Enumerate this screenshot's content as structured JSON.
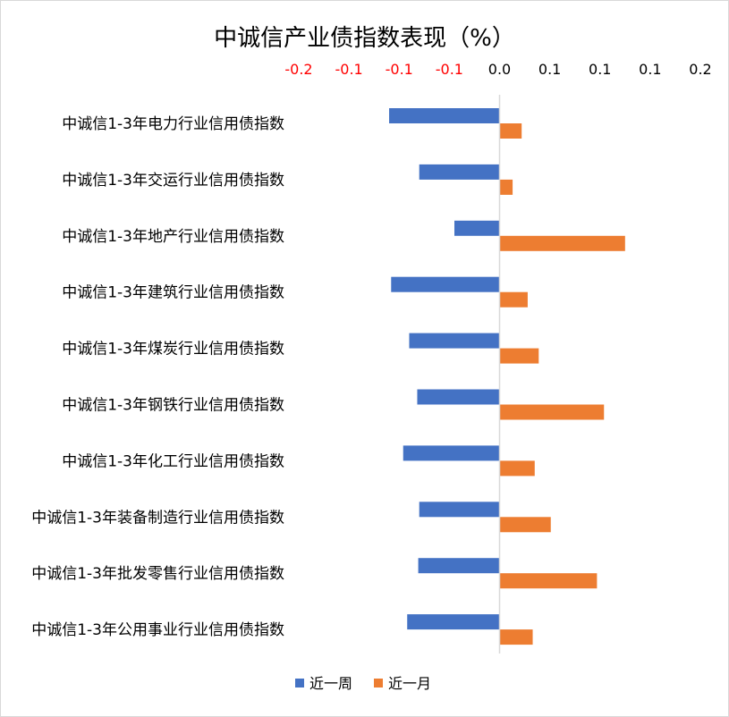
{
  "chart_data": {
    "type": "bar",
    "orientation": "horizontal",
    "title": "中诚信产业债指数表现（%）",
    "categories": [
      "中诚信1-3年电力行业信用债指数",
      "中诚信1-3年交运行业信用债指数",
      "中诚信1-3年地产行业信用债指数",
      "中诚信1-3年建筑行业信用债指数",
      "中诚信1-3年煤炭行业信用债指数",
      "中诚信1-3年钢铁行业信用债指数",
      "中诚信1-3年化工行业信用债指数",
      "中诚信1-3年装备制造行业信用债指数",
      "中诚信1-3年批发零售行业信用债指数",
      "中诚信1-3年公用事业行业信用债指数"
    ],
    "series": [
      {
        "name": "近一周",
        "color": "#4472c4",
        "values": [
          -0.11,
          -0.08,
          -0.045,
          -0.108,
          -0.09,
          -0.082,
          -0.096,
          -0.08,
          -0.081,
          -0.092
        ]
      },
      {
        "name": "近一月",
        "color": "#ed7d31",
        "values": [
          0.022,
          0.013,
          0.125,
          0.028,
          0.039,
          0.104,
          0.035,
          0.051,
          0.097,
          0.033
        ]
      }
    ],
    "xlim": [
      -0.2,
      0.2
    ],
    "tick_values": [
      -0.2,
      -0.15,
      -0.1,
      -0.05,
      0,
      0.05,
      0.1,
      0.15,
      0.2
    ],
    "tick_labels": [
      "-0.2",
      "-0.1",
      "-0.1",
      "-0.1",
      "0.0",
      "0.1",
      "0.1",
      "0.1",
      "0.2"
    ],
    "negative_tick_color": "#ff0000",
    "x_axis_position": "top",
    "grid": false,
    "legend_position": "bottom"
  }
}
